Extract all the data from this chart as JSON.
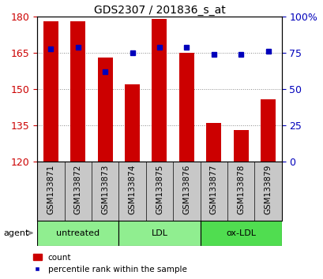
{
  "title": "GDS2307 / 201836_s_at",
  "samples": [
    "GSM133871",
    "GSM133872",
    "GSM133873",
    "GSM133874",
    "GSM133875",
    "GSM133876",
    "GSM133877",
    "GSM133878",
    "GSM133879"
  ],
  "counts": [
    178,
    178,
    163,
    152,
    179,
    165,
    136,
    133,
    146
  ],
  "percentiles": [
    78,
    79,
    62,
    75,
    79,
    79,
    74,
    74,
    76
  ],
  "ylim_left": [
    120,
    180
  ],
  "ylim_right": [
    0,
    100
  ],
  "yticks_left": [
    120,
    135,
    150,
    165,
    180
  ],
  "yticks_right": [
    0,
    25,
    50,
    75,
    100
  ],
  "ytick_labels_right": [
    "0",
    "25",
    "50",
    "75",
    "100%"
  ],
  "groups": [
    {
      "label": "untreated",
      "start": 0,
      "end": 3,
      "color": "#90EE90"
    },
    {
      "label": "LDL",
      "start": 3,
      "end": 6,
      "color": "#90EE90"
    },
    {
      "label": "ox-LDL",
      "start": 6,
      "end": 9,
      "color": "#50DD50"
    }
  ],
  "bar_color": "#CC0000",
  "dot_color": "#0000BB",
  "bar_width": 0.55,
  "tick_label_color_left": "#CC0000",
  "tick_label_color_right": "#0000BB",
  "agent_label": "agent",
  "legend_count_label": "count",
  "legend_pct_label": "percentile rank within the sample",
  "sample_bg_color": "#C8C8C8",
  "title_fontsize": 10,
  "label_fontsize": 7.5,
  "group_fontsize": 8
}
